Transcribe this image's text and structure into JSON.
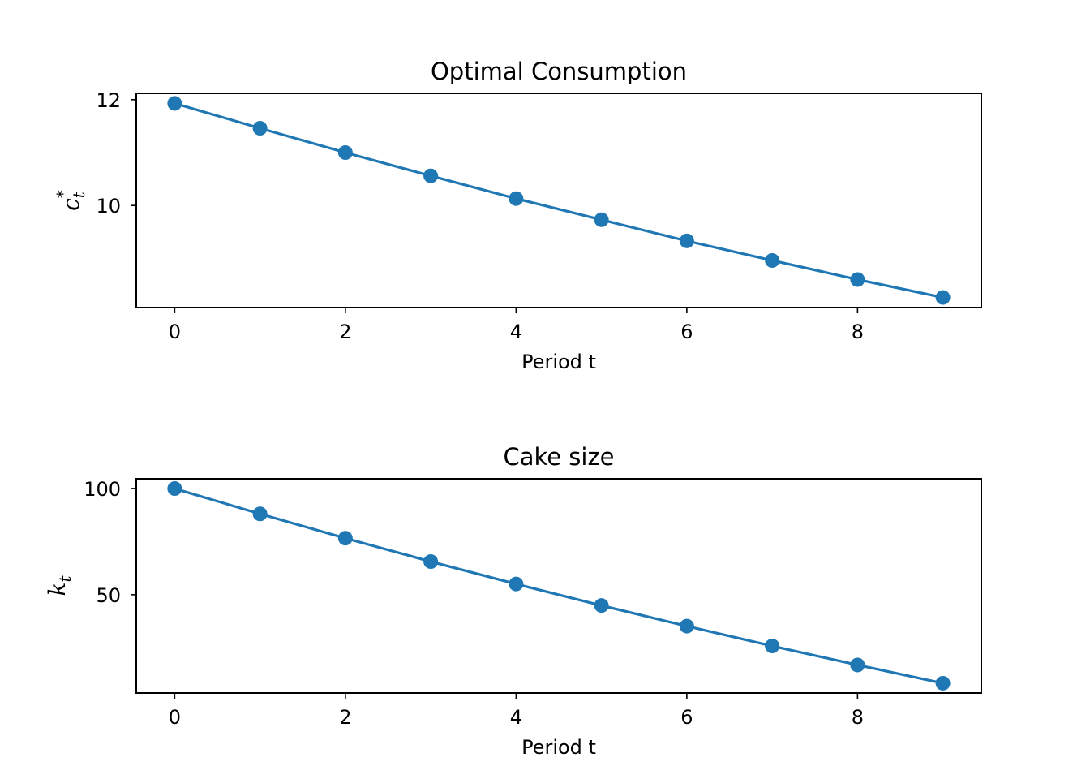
{
  "chart_data": [
    {
      "type": "line",
      "title": "Optimal Consumption",
      "xlabel": "Period t",
      "ylabel": {
        "base": "c",
        "sub": "t",
        "sup": "*"
      },
      "x": [
        0,
        1,
        2,
        3,
        4,
        5,
        6,
        7,
        8,
        9
      ],
      "series": [
        {
          "values": [
            11.93,
            11.46,
            11.0,
            10.56,
            10.13,
            9.73,
            9.33,
            8.96,
            8.6,
            8.26
          ]
        }
      ],
      "xlim": [
        -0.45,
        9.45
      ],
      "ylim": [
        8.07,
        12.12
      ],
      "xticks": [
        0,
        2,
        4,
        6,
        8
      ],
      "yticks": [
        10,
        12
      ],
      "grid": false,
      "marker": "circle",
      "color": "#1f77b4"
    },
    {
      "type": "line",
      "title": "Cake size",
      "xlabel": "Period t",
      "ylabel": {
        "base": "k",
        "sub": "t"
      },
      "x": [
        0,
        1,
        2,
        3,
        4,
        5,
        6,
        7,
        8,
        9
      ],
      "series": [
        {
          "values": [
            100.0,
            88.07,
            76.61,
            65.61,
            55.05,
            44.92,
            35.19,
            25.86,
            16.9,
            8.3
          ]
        }
      ],
      "xlim": [
        -0.45,
        9.45
      ],
      "ylim": [
        3.7,
        104.6
      ],
      "xticks": [
        0,
        2,
        4,
        6,
        8
      ],
      "yticks": [
        50,
        100
      ],
      "grid": false,
      "marker": "circle",
      "color": "#1f77b4"
    }
  ]
}
